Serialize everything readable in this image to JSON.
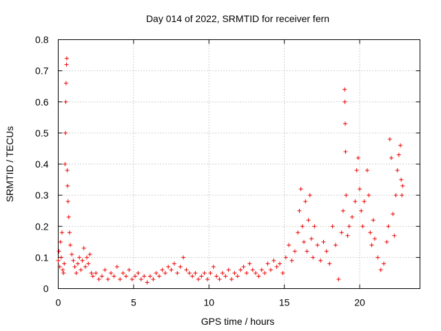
{
  "chart_data": {
    "type": "scatter",
    "title": "Day 014 of 2022, SRMTID for receiver fern",
    "xlabel": "GPS time / hours",
    "ylabel": "SRMTID / TECUs",
    "xlim": [
      0,
      24
    ],
    "ylim": [
      0,
      0.8
    ],
    "xticks": [
      0,
      5,
      10,
      15,
      20
    ],
    "xtick_labels": [
      "0",
      "5",
      "10",
      "15",
      "20"
    ],
    "yticks": [
      0,
      0.1,
      0.2,
      0.3,
      0.4,
      0.5,
      0.6,
      0.7,
      0.8
    ],
    "ytick_labels": [
      "0",
      "0.1",
      "0.2",
      "0.3",
      "0.4",
      "0.5",
      "0.6",
      "0.7",
      "0.8"
    ],
    "grid": true,
    "marker": "+",
    "color": "#ee0000",
    "series": [
      {
        "name": "SRMTID",
        "points": [
          [
            0.0,
            0.09
          ],
          [
            0.05,
            0.12
          ],
          [
            0.1,
            0.07
          ],
          [
            0.15,
            0.15
          ],
          [
            0.2,
            0.1
          ],
          [
            0.25,
            0.18
          ],
          [
            0.3,
            0.06
          ],
          [
            0.35,
            0.05
          ],
          [
            0.4,
            0.08
          ],
          [
            0.45,
            0.4
          ],
          [
            0.48,
            0.5
          ],
          [
            0.5,
            0.6
          ],
          [
            0.52,
            0.66
          ],
          [
            0.55,
            0.72
          ],
          [
            0.57,
            0.74
          ],
          [
            0.6,
            0.38
          ],
          [
            0.62,
            0.33
          ],
          [
            0.65,
            0.28
          ],
          [
            0.7,
            0.23
          ],
          [
            0.75,
            0.18
          ],
          [
            0.8,
            0.14
          ],
          [
            0.9,
            0.11
          ],
          [
            1.0,
            0.09
          ],
          [
            1.1,
            0.07
          ],
          [
            1.2,
            0.05
          ],
          [
            1.3,
            0.08
          ],
          [
            1.4,
            0.1
          ],
          [
            1.5,
            0.06
          ],
          [
            1.6,
            0.09
          ],
          [
            1.7,
            0.13
          ],
          [
            1.8,
            0.07
          ],
          [
            1.9,
            0.1
          ],
          [
            2.0,
            0.08
          ],
          [
            2.1,
            0.11
          ],
          [
            2.2,
            0.05
          ],
          [
            2.3,
            0.04
          ],
          [
            2.5,
            0.05
          ],
          [
            2.7,
            0.03
          ],
          [
            2.9,
            0.04
          ],
          [
            3.1,
            0.06
          ],
          [
            3.3,
            0.03
          ],
          [
            3.5,
            0.05
          ],
          [
            3.7,
            0.04
          ],
          [
            3.9,
            0.07
          ],
          [
            4.1,
            0.03
          ],
          [
            4.3,
            0.05
          ],
          [
            4.5,
            0.04
          ],
          [
            4.7,
            0.06
          ],
          [
            4.9,
            0.03
          ],
          [
            5.1,
            0.04
          ],
          [
            5.3,
            0.05
          ],
          [
            5.5,
            0.03
          ],
          [
            5.7,
            0.04
          ],
          [
            5.9,
            0.02
          ],
          [
            6.1,
            0.04
          ],
          [
            6.3,
            0.03
          ],
          [
            6.5,
            0.05
          ],
          [
            6.7,
            0.04
          ],
          [
            6.9,
            0.06
          ],
          [
            7.1,
            0.05
          ],
          [
            7.3,
            0.07
          ],
          [
            7.5,
            0.06
          ],
          [
            7.7,
            0.08
          ],
          [
            7.9,
            0.05
          ],
          [
            8.1,
            0.07
          ],
          [
            8.3,
            0.1
          ],
          [
            8.5,
            0.06
          ],
          [
            8.7,
            0.05
          ],
          [
            8.9,
            0.04
          ],
          [
            9.1,
            0.05
          ],
          [
            9.3,
            0.03
          ],
          [
            9.5,
            0.04
          ],
          [
            9.7,
            0.05
          ],
          [
            9.9,
            0.03
          ],
          [
            10.1,
            0.05
          ],
          [
            10.3,
            0.07
          ],
          [
            10.5,
            0.04
          ],
          [
            10.7,
            0.03
          ],
          [
            10.9,
            0.05
          ],
          [
            11.1,
            0.04
          ],
          [
            11.3,
            0.06
          ],
          [
            11.5,
            0.03
          ],
          [
            11.7,
            0.05
          ],
          [
            11.9,
            0.04
          ],
          [
            12.1,
            0.06
          ],
          [
            12.3,
            0.07
          ],
          [
            12.5,
            0.05
          ],
          [
            12.7,
            0.08
          ],
          [
            12.9,
            0.06
          ],
          [
            13.1,
            0.05
          ],
          [
            13.3,
            0.04
          ],
          [
            13.5,
            0.06
          ],
          [
            13.7,
            0.05
          ],
          [
            13.9,
            0.08
          ],
          [
            14.1,
            0.06
          ],
          [
            14.3,
            0.09
          ],
          [
            14.5,
            0.07
          ],
          [
            14.7,
            0.08
          ],
          [
            14.9,
            0.05
          ],
          [
            15.1,
            0.1
          ],
          [
            15.3,
            0.14
          ],
          [
            15.5,
            0.09
          ],
          [
            15.7,
            0.12
          ],
          [
            15.9,
            0.18
          ],
          [
            16.0,
            0.25
          ],
          [
            16.1,
            0.32
          ],
          [
            16.2,
            0.2
          ],
          [
            16.3,
            0.15
          ],
          [
            16.4,
            0.28
          ],
          [
            16.5,
            0.12
          ],
          [
            16.6,
            0.22
          ],
          [
            16.7,
            0.3
          ],
          [
            16.8,
            0.16
          ],
          [
            16.9,
            0.1
          ],
          [
            17.0,
            0.2
          ],
          [
            17.2,
            0.14
          ],
          [
            17.4,
            0.09
          ],
          [
            17.6,
            0.15
          ],
          [
            17.8,
            0.12
          ],
          [
            18.0,
            0.08
          ],
          [
            18.2,
            0.2
          ],
          [
            18.4,
            0.14
          ],
          [
            18.6,
            0.03
          ],
          [
            18.8,
            0.18
          ],
          [
            18.9,
            0.25
          ],
          [
            19.0,
            0.64
          ],
          [
            19.02,
            0.6
          ],
          [
            19.04,
            0.53
          ],
          [
            19.06,
            0.44
          ],
          [
            19.1,
            0.3
          ],
          [
            19.2,
            0.17
          ],
          [
            19.3,
            0.2
          ],
          [
            19.5,
            0.23
          ],
          [
            19.7,
            0.28
          ],
          [
            19.8,
            0.38
          ],
          [
            19.9,
            0.42
          ],
          [
            20.0,
            0.32
          ],
          [
            20.1,
            0.25
          ],
          [
            20.2,
            0.2
          ],
          [
            20.3,
            0.28
          ],
          [
            20.5,
            0.38
          ],
          [
            20.6,
            0.3
          ],
          [
            20.7,
            0.18
          ],
          [
            20.8,
            0.14
          ],
          [
            20.9,
            0.22
          ],
          [
            21.0,
            0.16
          ],
          [
            21.2,
            0.1
          ],
          [
            21.4,
            0.06
          ],
          [
            21.6,
            0.08
          ],
          [
            21.8,
            0.15
          ],
          [
            21.9,
            0.2
          ],
          [
            22.0,
            0.48
          ],
          [
            22.1,
            0.42
          ],
          [
            22.2,
            0.24
          ],
          [
            22.3,
            0.17
          ],
          [
            22.4,
            0.3
          ],
          [
            22.5,
            0.38
          ],
          [
            22.6,
            0.43
          ],
          [
            22.7,
            0.46
          ],
          [
            22.75,
            0.35
          ],
          [
            22.8,
            0.3
          ],
          [
            22.85,
            0.33
          ]
        ]
      }
    ]
  }
}
